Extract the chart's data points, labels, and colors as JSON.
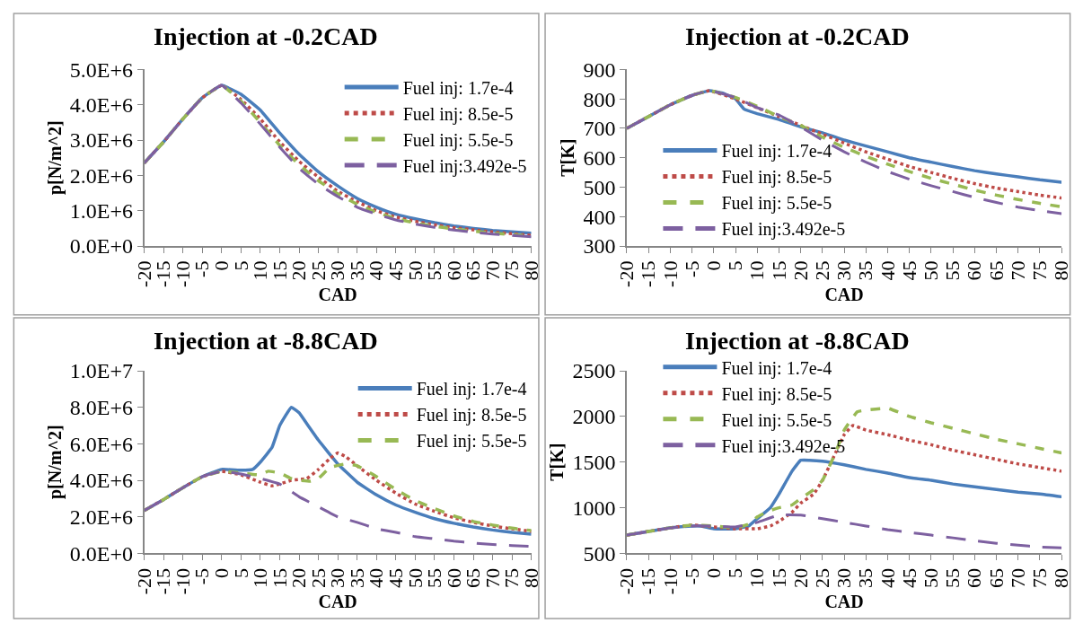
{
  "chart_data": [
    {
      "type": "line",
      "title": "Injection at -0.2CAD",
      "xlabel": "CAD",
      "ylabel": "p[N/m^2]",
      "xlim": [
        -20,
        80
      ],
      "xticks": [
        -20,
        -15,
        -10,
        -5,
        0,
        5,
        10,
        15,
        20,
        25,
        30,
        35,
        40,
        45,
        50,
        55,
        60,
        65,
        70,
        75,
        80
      ],
      "ylim": [
        0,
        5000000
      ],
      "yticks": [
        {
          "value": 0,
          "label": "0.0E+0"
        },
        {
          "value": 1000000,
          "label": "1.0E+6"
        },
        {
          "value": 2000000,
          "label": "2.0E+6"
        },
        {
          "value": 3000000,
          "label": "3.0E+6"
        },
        {
          "value": 4000000,
          "label": "4.0E+6"
        },
        {
          "value": 5000000,
          "label": "5.0E+6"
        }
      ],
      "legend": "top right",
      "series": [
        {
          "name": "Fuel inj: 1.7e-4",
          "color": "#4a7ebb",
          "line_style": "solid",
          "x": [
            -20,
            -15,
            -10,
            -5,
            0,
            5,
            10,
            15,
            20,
            25,
            30,
            35,
            40,
            45,
            50,
            55,
            60,
            65,
            70,
            75,
            80
          ],
          "values": [
            2350000,
            2950000,
            3600000,
            4200000,
            4550000,
            4300000,
            3850000,
            3200000,
            2600000,
            2100000,
            1700000,
            1350000,
            1100000,
            900000,
            770000,
            660000,
            570000,
            500000,
            440000,
            400000,
            360000
          ]
        },
        {
          "name": "Fuel inj: 8.5e-5",
          "color": "#be4b48",
          "line_style": "dotted",
          "x": [
            -20,
            -15,
            -10,
            -5,
            0,
            5,
            10,
            15,
            20,
            25,
            30,
            35,
            40,
            45,
            50,
            55,
            60,
            65,
            70,
            75,
            80
          ],
          "values": [
            2350000,
            2950000,
            3600000,
            4200000,
            4550000,
            4150000,
            3600000,
            2950000,
            2400000,
            1950000,
            1550000,
            1250000,
            1000000,
            820000,
            700000,
            600000,
            520000,
            460000,
            400000,
            350000,
            300000
          ]
        },
        {
          "name": "Fuel inj: 5.5e-5",
          "color": "#98b954",
          "line_style": "dashed",
          "x": [
            -20,
            -15,
            -10,
            -5,
            0,
            5,
            10,
            15,
            20,
            25,
            30,
            35,
            40,
            45,
            50,
            55,
            60,
            65,
            70,
            75,
            80
          ],
          "values": [
            2350000,
            2950000,
            3600000,
            4200000,
            4550000,
            4100000,
            3500000,
            2850000,
            2300000,
            1850000,
            1480000,
            1180000,
            950000,
            780000,
            650000,
            560000,
            480000,
            420000,
            370000,
            320000,
            280000
          ]
        },
        {
          "name": "Fuel inj:3.492e-5",
          "color": "#7d60a0",
          "line_style": "dashed",
          "x": [
            -20,
            -15,
            -10,
            -5,
            0,
            5,
            10,
            15,
            20,
            25,
            30,
            35,
            40,
            45,
            50,
            55,
            60,
            65,
            70,
            75,
            80
          ],
          "values": [
            2350000,
            2950000,
            3600000,
            4200000,
            4550000,
            4050000,
            3450000,
            2800000,
            2200000,
            1750000,
            1400000,
            1100000,
            900000,
            740000,
            620000,
            530000,
            450000,
            390000,
            340000,
            300000,
            260000
          ]
        }
      ]
    },
    {
      "type": "line",
      "title": "Injection at -0.2CAD",
      "xlabel": "CAD",
      "ylabel": "T[K]",
      "xlim": [
        -20,
        80
      ],
      "xticks": [
        -20,
        -15,
        -10,
        -5,
        0,
        5,
        10,
        15,
        20,
        25,
        30,
        35,
        40,
        45,
        50,
        55,
        60,
        65,
        70,
        75,
        80
      ],
      "ylim": [
        300,
        900
      ],
      "yticks": [
        300,
        400,
        500,
        600,
        700,
        800,
        900
      ],
      "legend": "bottom left",
      "series": [
        {
          "name": "Fuel inj: 1.7e-4",
          "color": "#4a7ebb",
          "line_style": "solid",
          "x": [
            -20,
            -15,
            -10,
            -5,
            -1,
            2,
            5,
            7,
            10,
            15,
            20,
            25,
            30,
            35,
            40,
            45,
            50,
            55,
            60,
            65,
            70,
            75,
            80
          ],
          "values": [
            700,
            740,
            780,
            812,
            828,
            820,
            800,
            765,
            750,
            730,
            705,
            685,
            660,
            640,
            620,
            600,
            585,
            570,
            556,
            545,
            535,
            525,
            517
          ]
        },
        {
          "name": "Fuel inj: 8.5e-5",
          "color": "#be4b48",
          "line_style": "dotted",
          "x": [
            -20,
            -15,
            -10,
            -5,
            -1,
            5,
            10,
            15,
            20,
            25,
            30,
            35,
            40,
            45,
            50,
            55,
            60,
            65,
            70,
            75,
            80
          ],
          "values": [
            700,
            740,
            780,
            812,
            828,
            800,
            770,
            740,
            710,
            680,
            650,
            620,
            595,
            570,
            550,
            530,
            512,
            497,
            485,
            473,
            463
          ]
        },
        {
          "name": "Fuel inj: 5.5e-5",
          "color": "#98b954",
          "line_style": "dashed",
          "x": [
            -20,
            -15,
            -10,
            -5,
            -1,
            5,
            10,
            15,
            20,
            25,
            30,
            35,
            40,
            45,
            50,
            55,
            60,
            65,
            70,
            75,
            80
          ],
          "values": [
            700,
            740,
            780,
            812,
            828,
            805,
            775,
            740,
            710,
            670,
            635,
            605,
            578,
            553,
            530,
            510,
            490,
            473,
            458,
            445,
            433
          ]
        },
        {
          "name": "Fuel inj:3.492e-5",
          "color": "#7d60a0",
          "line_style": "dashed",
          "x": [
            -20,
            -15,
            -10,
            -5,
            -1,
            5,
            10,
            15,
            20,
            25,
            30,
            35,
            40,
            45,
            50,
            55,
            60,
            65,
            70,
            75,
            80
          ],
          "values": [
            700,
            740,
            780,
            812,
            828,
            805,
            770,
            745,
            705,
            660,
            620,
            585,
            553,
            527,
            505,
            485,
            465,
            448,
            432,
            420,
            410
          ]
        }
      ]
    },
    {
      "type": "line",
      "title": "Injection at -8.8CAD",
      "xlabel": "CAD",
      "ylabel": "p[N/m^2]",
      "xlim": [
        -20,
        80
      ],
      "xticks": [
        -20,
        -15,
        -10,
        -5,
        0,
        5,
        10,
        15,
        20,
        25,
        30,
        35,
        40,
        45,
        50,
        55,
        60,
        65,
        70,
        75,
        80
      ],
      "ylim": [
        0,
        10000000
      ],
      "yticks": [
        {
          "value": 0,
          "label": "0.0E+0"
        },
        {
          "value": 2000000,
          "label": "2.0E+6"
        },
        {
          "value": 4000000,
          "label": "4.0E+6"
        },
        {
          "value": 6000000,
          "label": "6.0E+6"
        },
        {
          "value": 8000000,
          "label": "8.0E+6"
        },
        {
          "value": 10000000,
          "label": "1.0E+7"
        }
      ],
      "legend": "top right",
      "series": [
        {
          "name": "Fuel inj: 1.7e-4",
          "color": "#4a7ebb",
          "line_style": "solid",
          "x": [
            -20,
            -15,
            -10,
            -5,
            0,
            5,
            8,
            10,
            13,
            15,
            18,
            20,
            22,
            25,
            30,
            35,
            40,
            45,
            50,
            55,
            60,
            65,
            70,
            75,
            80
          ],
          "values": [
            2350000,
            2950000,
            3600000,
            4200000,
            4600000,
            4550000,
            4600000,
            5000000,
            5800000,
            7000000,
            8000000,
            7700000,
            7100000,
            6200000,
            4900000,
            3900000,
            3200000,
            2650000,
            2250000,
            1900000,
            1650000,
            1450000,
            1280000,
            1150000,
            1050000
          ]
        },
        {
          "name": "Fuel inj: 8.5e-5",
          "color": "#be4b48",
          "line_style": "dotted",
          "x": [
            -20,
            -15,
            -10,
            -5,
            0,
            5,
            10,
            13,
            15,
            18,
            20,
            22,
            25,
            28,
            30,
            32,
            35,
            40,
            45,
            50,
            55,
            60,
            65,
            70,
            75,
            80
          ],
          "values": [
            2350000,
            2950000,
            3600000,
            4200000,
            4500000,
            4300000,
            3900000,
            3700000,
            3800000,
            4000000,
            4050000,
            4100000,
            4600000,
            5200000,
            5500000,
            5300000,
            4800000,
            4000000,
            3300000,
            2700000,
            2300000,
            1950000,
            1700000,
            1500000,
            1350000,
            1200000
          ]
        },
        {
          "name": "Fuel inj: 5.5e-5",
          "color": "#98b954",
          "line_style": "dashed",
          "x": [
            -20,
            -15,
            -10,
            -5,
            0,
            5,
            10,
            12,
            15,
            18,
            20,
            23,
            25,
            28,
            32,
            35,
            40,
            45,
            50,
            55,
            60,
            65,
            70,
            75,
            80
          ],
          "values": [
            2350000,
            2950000,
            3600000,
            4200000,
            4500000,
            4400000,
            4300000,
            4500000,
            4400000,
            4100000,
            4000000,
            3950000,
            4100000,
            4700000,
            4900000,
            4800000,
            4200000,
            3500000,
            2900000,
            2450000,
            2050000,
            1750000,
            1550000,
            1380000,
            1250000
          ]
        },
        {
          "color": "#7d60a0",
          "line_style": "dashed",
          "x": [
            -20,
            -15,
            -10,
            -5,
            0,
            5,
            10,
            15,
            20,
            25,
            30,
            35,
            40,
            45,
            50,
            55,
            60,
            65,
            70,
            75,
            80
          ],
          "values": [
            2350000,
            2950000,
            3600000,
            4200000,
            4500000,
            4350000,
            4100000,
            3800000,
            3100000,
            2550000,
            2000000,
            1700000,
            1350000,
            1150000,
            920000,
            800000,
            670000,
            570000,
            490000,
            430000,
            380000
          ]
        }
      ]
    },
    {
      "type": "line",
      "title": "Injection at -8.8CAD",
      "xlabel": "CAD",
      "ylabel": "T[K]",
      "xlim": [
        -20,
        80
      ],
      "xticks": [
        -20,
        -15,
        -10,
        -5,
        0,
        5,
        10,
        15,
        20,
        25,
        30,
        35,
        40,
        45,
        50,
        55,
        60,
        65,
        70,
        75,
        80
      ],
      "ylim": [
        500,
        2500
      ],
      "yticks": [
        500,
        1000,
        1500,
        2000,
        2500
      ],
      "legend": "top left",
      "series": [
        {
          "name": "Fuel inj: 1.7e-4",
          "color": "#4a7ebb",
          "line_style": "solid",
          "x": [
            -20,
            -15,
            -10,
            -5,
            -3,
            0,
            5,
            8,
            10,
            13,
            15,
            18,
            20,
            22,
            25,
            30,
            35,
            40,
            45,
            50,
            55,
            60,
            65,
            70,
            75,
            80
          ],
          "values": [
            700,
            740,
            780,
            800,
            800,
            770,
            770,
            800,
            880,
            1000,
            1150,
            1400,
            1520,
            1520,
            1510,
            1470,
            1420,
            1380,
            1330,
            1300,
            1260,
            1230,
            1200,
            1170,
            1150,
            1120
          ]
        },
        {
          "name": "Fuel inj: 8.5e-5",
          "color": "#be4b48",
          "line_style": "dotted",
          "x": [
            -20,
            -15,
            -10,
            -5,
            0,
            5,
            10,
            13,
            15,
            18,
            20,
            23,
            25,
            28,
            30,
            32,
            35,
            40,
            45,
            50,
            55,
            60,
            65,
            70,
            75,
            80
          ],
          "values": [
            700,
            740,
            780,
            810,
            790,
            770,
            770,
            800,
            850,
            950,
            1050,
            1150,
            1300,
            1600,
            1800,
            1900,
            1850,
            1800,
            1740,
            1690,
            1630,
            1580,
            1530,
            1480,
            1440,
            1400
          ]
        },
        {
          "name": "Fuel inj: 5.5e-5",
          "color": "#98b954",
          "line_style": "dashed",
          "x": [
            -20,
            -15,
            -10,
            -5,
            0,
            5,
            8,
            10,
            13,
            15,
            18,
            20,
            23,
            25,
            28,
            30,
            33,
            35,
            40,
            45,
            50,
            55,
            60,
            65,
            70,
            75,
            80
          ],
          "values": [
            700,
            740,
            780,
            810,
            800,
            780,
            820,
            900,
            970,
            1000,
            1030,
            1100,
            1200,
            1300,
            1600,
            1850,
            2050,
            2070,
            2090,
            2000,
            1930,
            1870,
            1810,
            1750,
            1700,
            1650,
            1600
          ]
        },
        {
          "name": "Fuel inj:3.492e-5",
          "color": "#7d60a0",
          "line_style": "dashed",
          "x": [
            -20,
            -15,
            -10,
            -5,
            0,
            5,
            10,
            15,
            20,
            25,
            30,
            35,
            40,
            45,
            50,
            55,
            60,
            65,
            70,
            75,
            80
          ],
          "values": [
            700,
            740,
            780,
            800,
            800,
            790,
            840,
            920,
            920,
            880,
            840,
            800,
            760,
            730,
            700,
            670,
            640,
            610,
            590,
            570,
            560
          ]
        }
      ]
    }
  ]
}
